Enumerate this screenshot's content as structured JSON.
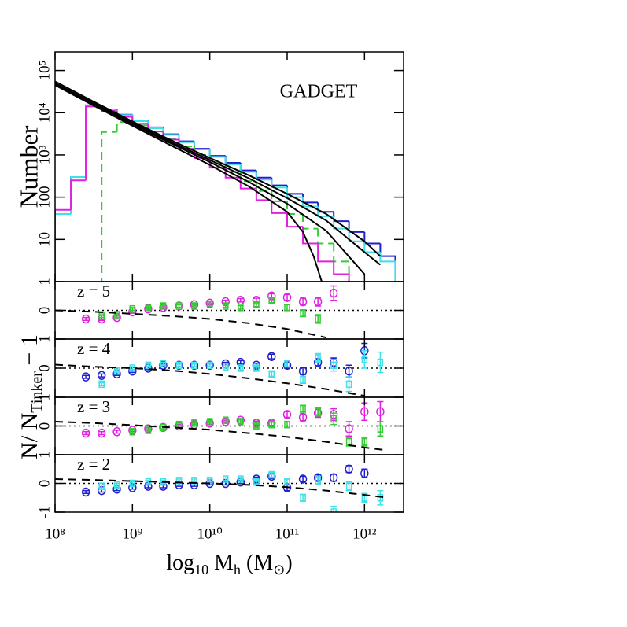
{
  "chart_data": [
    {
      "type": "histogram",
      "annotation": "GADGET",
      "ylabel": "Number",
      "log_x": true,
      "log_y": true,
      "xlim": [
        100000000.0,
        3200000000000.0
      ],
      "xticks": [
        100000000.0,
        1000000000.0,
        10000000000.0,
        100000000000.0,
        1000000000000.0
      ],
      "ylim": [
        1,
        275000
      ],
      "yticks": [
        1,
        10,
        100,
        {
          "value": 1000,
          "label": "10³"
        },
        {
          "value": 10000,
          "label": "10⁴"
        },
        {
          "value": 100000,
          "label": "10⁵"
        }
      ],
      "bins": [
        100000000.0,
        160000000.0,
        250000000.0,
        400000000.0,
        630000000.0,
        1000000000.0,
        1600000000.0,
        2500000000.0,
        4000000000.0,
        6300000000.0,
        10000000000.0,
        16000000000.0,
        25000000000.0,
        40000000000.0,
        63000000000.0,
        100000000000.0,
        160000000000.0,
        250000000000.0,
        400000000000.0,
        630000000000.0,
        1000000000000.0,
        1600000000000.0,
        2500000000000.0
      ],
      "series": [
        {
          "color": "#1f1fd0",
          "dashed": false,
          "values": [
            40,
            300,
            15000,
            12000,
            9000,
            6500,
            4500,
            3100,
            2100,
            1400,
            950,
            650,
            430,
            290,
            190,
            120,
            75,
            45,
            27,
            15,
            8,
            4
          ]
        },
        {
          "color": "#3fe0e8",
          "dashed": false,
          "values": [
            40,
            300,
            14500,
            11500,
            8800,
            6300,
            4300,
            3000,
            2000,
            1350,
            900,
            600,
            400,
            260,
            170,
            100,
            60,
            35,
            18,
            9,
            5,
            3
          ]
        },
        {
          "color": "#33cc33",
          "dashed": true,
          "values": [
            null,
            null,
            null,
            3500,
            6000,
            5000,
            3600,
            2400,
            1600,
            1000,
            640,
            400,
            240,
            140,
            80,
            40,
            18,
            8,
            3,
            null,
            null,
            null
          ]
        },
        {
          "color": "#e020e0",
          "dashed": false,
          "values": [
            50,
            250,
            14000,
            11000,
            8000,
            5500,
            3600,
            2300,
            1400,
            850,
            500,
            290,
            160,
            85,
            42,
            20,
            8,
            3,
            1.5,
            null,
            null,
            null
          ]
        }
      ],
      "curves": [
        {
          "color": "#000000",
          "x": [
            100000000.0,
            320000000.0,
            1000000000.0,
            3200000000.0,
            10000000000.0,
            32000000000.0,
            100000000000.0,
            320000000000.0,
            1000000000000.0,
            1600000000000.0
          ],
          "values": [
            55000,
            18000,
            6200,
            2200,
            850,
            330,
            120,
            40,
            9,
            4
          ]
        },
        {
          "color": "#000000",
          "x": [
            100000000.0,
            320000000.0,
            1000000000.0,
            3200000000.0,
            10000000000.0,
            32000000000.0,
            100000000000.0,
            320000000000.0,
            1000000000000.0,
            1600000000000.0
          ],
          "values": [
            50000,
            16500,
            5800,
            2000,
            760,
            280,
            95,
            28,
            5,
            2.5
          ]
        },
        {
          "color": "#000000",
          "x": [
            100000000.0,
            320000000.0,
            1000000000.0,
            3200000000.0,
            10000000000.0,
            32000000000.0,
            100000000000.0,
            320000000000.0,
            1000000000000.0
          ],
          "values": [
            47000,
            15500,
            5300,
            1850,
            680,
            230,
            70,
            16,
            1.5
          ]
        },
        {
          "color": "#000000",
          "x": [
            100000000.0,
            320000000.0,
            1000000000.0,
            3200000000.0,
            10000000000.0,
            32000000000.0,
            100000000000.0,
            160000000000.0,
            220000000000.0,
            280000000000.0
          ],
          "values": [
            45000,
            14500,
            4900,
            1650,
            580,
            180,
            45,
            15,
            4,
            1
          ]
        }
      ]
    },
    {
      "type": "scatter",
      "annotation": "z = 5",
      "log_x": true,
      "ylabel": {
        "main": "N/ N",
        "sub": "Tinker",
        "tail": " − 1"
      },
      "xlim": [
        100000000.0,
        3200000000000.0
      ],
      "xticks": [
        100000000.0,
        1000000000.0,
        10000000000.0,
        100000000000.0,
        1000000000000.0
      ],
      "ylim": [
        -1,
        1
      ],
      "yticks": [
        0
      ],
      "reference": 0,
      "x": [
        250000000.0,
        400000000.0,
        630000000.0,
        1000000000.0,
        1600000000.0,
        2500000000.0,
        4000000000.0,
        6300000000.0,
        10000000000.0,
        16000000000.0,
        25000000000.0,
        40000000000.0,
        63000000000.0,
        100000000000.0,
        160000000000.0,
        250000000000.0,
        400000000000.0,
        630000000000.0,
        1000000000000.0,
        1600000000000.0
      ],
      "series": [
        {
          "color": "#e020e0",
          "marker": "circle",
          "values": [
            -0.3,
            -0.3,
            -0.25,
            -0.05,
            0.05,
            0.1,
            0.15,
            0.2,
            0.25,
            0.3,
            0.35,
            0.35,
            0.5,
            0.45,
            0.3,
            0.3,
            0.6,
            null,
            null,
            null
          ],
          "errors": [
            0.05,
            0.05,
            0.05,
            0.05,
            0.05,
            0.05,
            0.05,
            0.05,
            0.05,
            0.05,
            0.06,
            0.07,
            0.08,
            0.1,
            0.12,
            0.15,
            0.25,
            null,
            null,
            null
          ]
        },
        {
          "color": "#33cc33",
          "marker": "square",
          "values": [
            null,
            -0.2,
            -0.15,
            0.05,
            0.1,
            0.15,
            0.15,
            0.15,
            0.2,
            0.15,
            0.1,
            0.2,
            0.35,
            0.1,
            -0.1,
            -0.3,
            null,
            null,
            null,
            null
          ],
          "errors": [
            null,
            0.05,
            0.05,
            0.05,
            0.05,
            0.05,
            0.05,
            0.05,
            0.05,
            0.05,
            0.06,
            0.07,
            0.08,
            0.1,
            0.12,
            0.15,
            null,
            null,
            null,
            null
          ]
        }
      ],
      "curves": [
        {
          "color": "#000000",
          "dashed": true,
          "x": [
            100000000.0,
            320000000.0,
            1000000000.0,
            3200000000.0,
            10000000000.0,
            32000000000.0,
            100000000000.0,
            320000000000.0
          ],
          "values": [
            0,
            -0.05,
            -0.12,
            -0.2,
            -0.3,
            -0.45,
            -0.65,
            -0.95
          ]
        }
      ]
    },
    {
      "type": "scatter",
      "annotation": "z = 4",
      "log_x": true,
      "xlim": [
        100000000.0,
        3200000000000.0
      ],
      "xticks": [
        100000000.0,
        1000000000.0,
        10000000000.0,
        100000000000.0,
        1000000000000.0
      ],
      "ylim": [
        -1,
        1
      ],
      "yticks": [
        0,
        1
      ],
      "reference": 0,
      "x": [
        250000000.0,
        400000000.0,
        630000000.0,
        1000000000.0,
        1600000000.0,
        2500000000.0,
        4000000000.0,
        6300000000.0,
        10000000000.0,
        16000000000.0,
        25000000000.0,
        40000000000.0,
        63000000000.0,
        100000000000.0,
        160000000000.0,
        250000000000.0,
        400000000000.0,
        630000000000.0,
        1000000000000.0,
        1600000000000.0
      ],
      "series": [
        {
          "color": "#1f1fd0",
          "marker": "circle",
          "values": [
            -0.3,
            -0.25,
            -0.2,
            -0.1,
            0,
            0.1,
            0.1,
            0.1,
            0.1,
            0.15,
            0.2,
            0.1,
            0.4,
            0.1,
            -0.1,
            0.2,
            0.2,
            -0.1,
            0.6,
            null
          ],
          "errors": [
            0.05,
            0.05,
            0.05,
            0.05,
            0.05,
            0.05,
            0.05,
            0.05,
            0.05,
            0.05,
            0.06,
            0.07,
            0.08,
            0.1,
            0.12,
            0.12,
            0.15,
            0.2,
            0.25,
            null
          ]
        },
        {
          "color": "#3fe0e8",
          "marker": "square",
          "values": [
            null,
            -0.55,
            -0.1,
            0,
            0.1,
            0.15,
            0.1,
            0.1,
            0.1,
            0.05,
            0,
            0,
            -0.2,
            0.15,
            -0.4,
            0.35,
            0.1,
            -0.55,
            0.3,
            0.2
          ],
          "errors": [
            null,
            0.05,
            0.05,
            0.05,
            0.05,
            0.05,
            0.05,
            0.05,
            0.05,
            0.05,
            0.06,
            0.07,
            0.08,
            0.1,
            0.12,
            0.15,
            0.2,
            0.25,
            0.3,
            0.35
          ]
        }
      ],
      "curves": [
        {
          "color": "#000000",
          "dashed": true,
          "x": [
            100000000.0,
            320000000.0,
            1000000000.0,
            3200000000.0,
            10000000000.0,
            32000000000.0,
            100000000000.0,
            320000000000.0,
            1000000000000.0
          ],
          "values": [
            0.12,
            0.05,
            0,
            -0.08,
            -0.2,
            -0.35,
            -0.52,
            -0.72,
            -0.95
          ]
        }
      ]
    },
    {
      "type": "scatter",
      "annotation": "z = 3",
      "log_x": true,
      "xlim": [
        100000000.0,
        3200000000000.0
      ],
      "xticks": [
        100000000.0,
        1000000000.0,
        10000000000.0,
        100000000000.0,
        1000000000000.0
      ],
      "ylim": [
        -1,
        1
      ],
      "yticks": [
        0,
        1
      ],
      "reference": 0,
      "x": [
        250000000.0,
        400000000.0,
        630000000.0,
        1000000000.0,
        1600000000.0,
        2500000000.0,
        4000000000.0,
        6300000000.0,
        10000000000.0,
        16000000000.0,
        25000000000.0,
        40000000000.0,
        63000000000.0,
        100000000000.0,
        160000000000.0,
        250000000000.0,
        400000000000.0,
        630000000000.0,
        1000000000000.0,
        1600000000000.0
      ],
      "series": [
        {
          "color": "#e020e0",
          "marker": "circle",
          "values": [
            -0.25,
            -0.25,
            -0.2,
            -0.15,
            -0.1,
            -0.05,
            0,
            0.05,
            0.1,
            0.15,
            0.2,
            0.1,
            0.1,
            0.4,
            0.3,
            0.45,
            0.4,
            -0.1,
            0.5,
            0.5
          ],
          "errors": [
            0.05,
            0.05,
            0.05,
            0.05,
            0.05,
            0.05,
            0.05,
            0.05,
            0.05,
            0.05,
            0.06,
            0.07,
            0.08,
            0.1,
            0.12,
            0.15,
            0.2,
            0.25,
            0.3,
            0.35
          ]
        },
        {
          "color": "#33cc33",
          "marker": "square",
          "values": [
            null,
            null,
            null,
            -0.2,
            -0.15,
            -0.05,
            0.05,
            0.1,
            0.15,
            0.2,
            0.15,
            0,
            0.05,
            0.05,
            0.6,
            0.5,
            0.25,
            -0.55,
            -0.55,
            -0.1
          ],
          "errors": [
            null,
            null,
            null,
            0.05,
            0.05,
            0.05,
            0.05,
            0.05,
            0.05,
            0.05,
            0.06,
            0.07,
            0.08,
            0.1,
            0.12,
            0.15,
            0.2,
            0.15,
            0.15,
            0.25
          ]
        }
      ],
      "curves": [
        {
          "color": "#000000",
          "dashed": true,
          "x": [
            100000000.0,
            320000000.0,
            1000000000.0,
            3200000000.0,
            10000000000.0,
            32000000000.0,
            100000000000.0,
            320000000000.0,
            1000000000000.0,
            2000000000000.0
          ],
          "values": [
            0.15,
            0.1,
            0.03,
            -0.05,
            -0.13,
            -0.25,
            -0.38,
            -0.55,
            -0.75,
            -0.85
          ]
        }
      ]
    },
    {
      "type": "scatter",
      "annotation": "z = 2",
      "log_x": true,
      "xlabel": {
        "log": "log",
        "base": "10",
        "mass": " M",
        "mass_sub": "h",
        "unit_open": " (M",
        "unit_sub": "⊙",
        "unit_close": ")"
      },
      "xlim": [
        100000000.0,
        3200000000000.0
      ],
      "xticks": [
        {
          "value": 100000000.0,
          "label": "10⁸"
        },
        {
          "value": 1000000000.0,
          "label": "10⁹"
        },
        {
          "value": 10000000000.0,
          "label": "10¹⁰"
        },
        {
          "value": 100000000000.0,
          "label": "10¹¹"
        },
        {
          "value": 1000000000000.0,
          "label": "10¹²"
        }
      ],
      "ylim": [
        -1,
        1
      ],
      "yticks": [
        -1,
        0,
        1
      ],
      "reference": 0,
      "x": [
        250000000.0,
        400000000.0,
        630000000.0,
        1000000000.0,
        1600000000.0,
        2500000000.0,
        4000000000.0,
        6300000000.0,
        10000000000.0,
        16000000000.0,
        25000000000.0,
        40000000000.0,
        63000000000.0,
        100000000000.0,
        160000000000.0,
        250000000000.0,
        400000000000.0,
        630000000000.0,
        1000000000000.0,
        1600000000000.0
      ],
      "series": [
        {
          "color": "#1f1fd0",
          "marker": "circle",
          "values": [
            -0.3,
            -0.25,
            -0.2,
            -0.15,
            -0.1,
            -0.1,
            -0.05,
            -0.05,
            0,
            0,
            0.05,
            0.15,
            0.25,
            -0.15,
            0.15,
            0.2,
            0.2,
            0.5,
            0.35,
            null
          ],
          "errors": [
            0.05,
            0.05,
            0.05,
            0.05,
            0.05,
            0.05,
            0.05,
            0.05,
            0.05,
            0.05,
            0.06,
            0.07,
            0.08,
            0.1,
            0.1,
            0.1,
            0.12,
            0.12,
            0.15,
            null
          ]
        },
        {
          "color": "#3fe0e8",
          "marker": "square",
          "values": [
            null,
            -0.1,
            -0.05,
            0,
            0.05,
            0.05,
            0.1,
            0.1,
            0.1,
            0.15,
            0.15,
            0.05,
            0.3,
            0.05,
            -0.5,
            0.1,
            -1,
            -0.1,
            -0.5,
            -0.5
          ],
          "errors": [
            null,
            0.05,
            0.05,
            0.05,
            0.05,
            0.05,
            0.05,
            0.05,
            0.05,
            0.05,
            0.06,
            0.07,
            0.08,
            0.1,
            0.12,
            0.15,
            0.2,
            0.15,
            0.15,
            0.25
          ]
        }
      ],
      "curves": [
        {
          "color": "#000000",
          "dashed": true,
          "x": [
            100000000.0,
            320000000.0,
            1000000000.0,
            3200000000.0,
            10000000000.0,
            32000000000.0,
            100000000000.0,
            320000000000.0,
            1000000000000.0,
            2000000000000.0
          ],
          "values": [
            0.15,
            0.12,
            0.08,
            0.04,
            0,
            -0.05,
            -0.13,
            -0.25,
            -0.4,
            -0.5
          ]
        }
      ]
    }
  ]
}
